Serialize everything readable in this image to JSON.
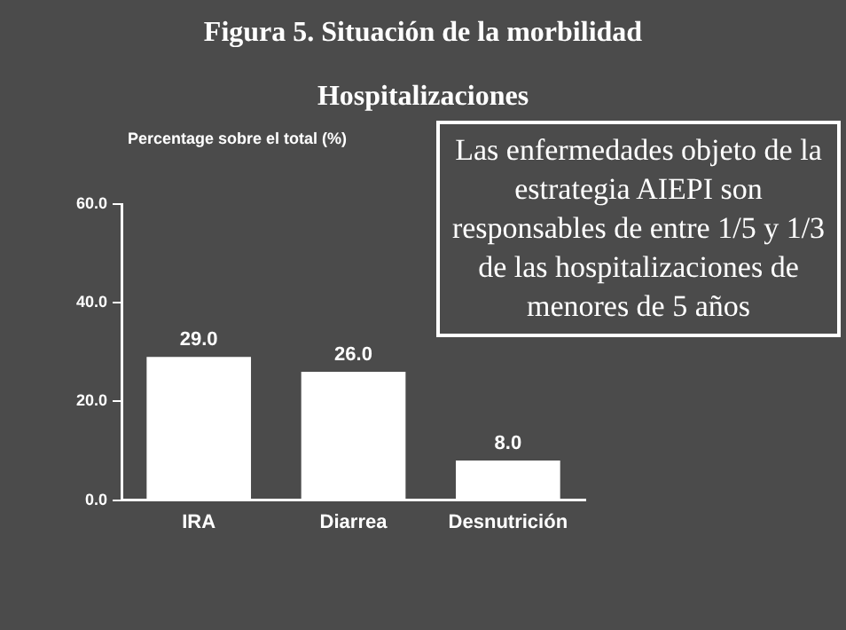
{
  "chart_data": {
    "type": "bar",
    "title": "Figura 5. Situación de la morbilidad",
    "subtitle": "Hospitalizaciones",
    "ylabel": "Percentage sobre el total (%)",
    "categories": [
      "IRA",
      "Diarrea",
      "Desnutrición"
    ],
    "values": [
      29,
      26,
      8
    ],
    "value_labels": [
      "29.0",
      "26.0",
      "8.0"
    ],
    "color": "#ffffff",
    "ylim": [
      0,
      60
    ],
    "yticks": [
      {
        "value": 0,
        "label": "0.0"
      },
      {
        "value": 20,
        "label": "20.0"
      },
      {
        "value": 40,
        "label": "40.0"
      },
      {
        "value": 60,
        "label": "60.0"
      }
    ],
    "grid": false,
    "legend": false,
    "annotations": [
      "Las enfermedades objeto de la estrategia AIEPI son responsables de entre 1/5 y 1/3 de las hospitalizaciones de menores de 5 años"
    ]
  }
}
